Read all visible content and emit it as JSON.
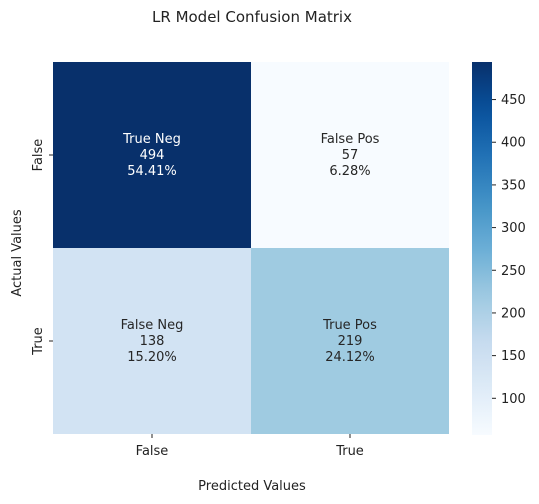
{
  "chart_data": {
    "type": "heatmap",
    "title": "LR Model Confusion Matrix",
    "xlabel": "Predicted Values",
    "ylabel": "Actual Values",
    "x_categories": [
      "False",
      "True"
    ],
    "y_categories": [
      "False",
      "True"
    ],
    "matrix": [
      [
        494,
        57
      ],
      [
        138,
        219
      ]
    ],
    "cell_labels": [
      [
        {
          "name": "True Neg",
          "count": "494",
          "percent": "54.41%"
        },
        {
          "name": "False Pos",
          "count": "57",
          "percent": "6.28%"
        }
      ],
      [
        {
          "name": "False Neg",
          "count": "138",
          "percent": "15.20%"
        },
        {
          "name": "True Pos",
          "count": "219",
          "percent": "24.12%"
        }
      ]
    ],
    "colormap": "Blues",
    "colorbar": {
      "vmin": 57,
      "vmax": 494,
      "ticks": [
        100,
        150,
        200,
        250,
        300,
        350,
        400,
        450
      ]
    }
  }
}
